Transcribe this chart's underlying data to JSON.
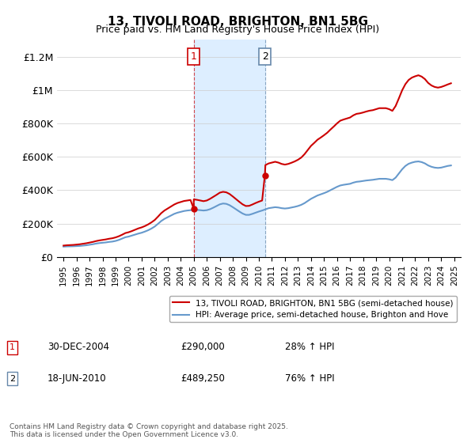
{
  "title": "13, TIVOLI ROAD, BRIGHTON, BN1 5BG",
  "subtitle": "Price paid vs. HM Land Registry's House Price Index (HPI)",
  "legend_line1": "13, TIVOLI ROAD, BRIGHTON, BN1 5BG (semi-detached house)",
  "legend_line2": "HPI: Average price, semi-detached house, Brighton and Hove",
  "price_color": "#cc0000",
  "hpi_color": "#6699cc",
  "shading_color": "#ddeeff",
  "annotation_box_color": "#cc0000",
  "ylim": [
    0,
    1300000
  ],
  "yticks": [
    0,
    200000,
    400000,
    600000,
    800000,
    1000000,
    1200000
  ],
  "ytick_labels": [
    "£0",
    "£200K",
    "£400K",
    "£600K",
    "£800K",
    "£1M",
    "£1.2M"
  ],
  "transaction1_date": "30-DEC-2004",
  "transaction1_price": "£290,000",
  "transaction1_hpi": "28% ↑ HPI",
  "transaction1_x": 2004.99,
  "transaction2_date": "18-JUN-2010",
  "transaction2_price": "£489,250",
  "transaction2_hpi": "76% ↑ HPI",
  "transaction2_x": 2010.46,
  "footer": "Contains HM Land Registry data © Crown copyright and database right 2025.\nThis data is licensed under the Open Government Licence v3.0.",
  "hpi_data": {
    "years": [
      1995.0,
      1995.25,
      1995.5,
      1995.75,
      1996.0,
      1996.25,
      1996.5,
      1996.75,
      1997.0,
      1997.25,
      1997.5,
      1997.75,
      1998.0,
      1998.25,
      1998.5,
      1998.75,
      1999.0,
      1999.25,
      1999.5,
      1999.75,
      2000.0,
      2000.25,
      2000.5,
      2000.75,
      2001.0,
      2001.25,
      2001.5,
      2001.75,
      2002.0,
      2002.25,
      2002.5,
      2002.75,
      2003.0,
      2003.25,
      2003.5,
      2003.75,
      2004.0,
      2004.25,
      2004.5,
      2004.75,
      2005.0,
      2005.25,
      2005.5,
      2005.75,
      2006.0,
      2006.25,
      2006.5,
      2006.75,
      2007.0,
      2007.25,
      2007.5,
      2007.75,
      2008.0,
      2008.25,
      2008.5,
      2008.75,
      2009.0,
      2009.25,
      2009.5,
      2009.75,
      2010.0,
      2010.25,
      2010.5,
      2010.75,
      2011.0,
      2011.25,
      2011.5,
      2011.75,
      2012.0,
      2012.25,
      2012.5,
      2012.75,
      2013.0,
      2013.25,
      2013.5,
      2013.75,
      2014.0,
      2014.25,
      2014.5,
      2014.75,
      2015.0,
      2015.25,
      2015.5,
      2015.75,
      2016.0,
      2016.25,
      2016.5,
      2016.75,
      2017.0,
      2017.25,
      2017.5,
      2017.75,
      2018.0,
      2018.25,
      2018.5,
      2018.75,
      2019.0,
      2019.25,
      2019.5,
      2019.75,
      2020.0,
      2020.25,
      2020.5,
      2020.75,
      2021.0,
      2021.25,
      2021.5,
      2021.75,
      2022.0,
      2022.25,
      2022.5,
      2022.75,
      2023.0,
      2023.25,
      2023.5,
      2023.75,
      2024.0,
      2024.25,
      2024.5,
      2024.75
    ],
    "values": [
      62000,
      63000,
      63500,
      64000,
      65000,
      66000,
      68000,
      70000,
      73000,
      76000,
      80000,
      83000,
      85000,
      87000,
      90000,
      92000,
      96000,
      102000,
      110000,
      118000,
      122000,
      128000,
      134000,
      140000,
      145000,
      152000,
      160000,
      170000,
      182000,
      198000,
      215000,
      228000,
      238000,
      248000,
      258000,
      265000,
      270000,
      275000,
      278000,
      280000,
      282000,
      282000,
      280000,
      278000,
      280000,
      286000,
      295000,
      305000,
      315000,
      320000,
      318000,
      310000,
      298000,
      285000,
      272000,
      260000,
      252000,
      252000,
      258000,
      265000,
      272000,
      278000,
      285000,
      292000,
      295000,
      298000,
      296000,
      292000,
      290000,
      292000,
      296000,
      300000,
      305000,
      312000,
      322000,
      335000,
      348000,
      358000,
      368000,
      375000,
      382000,
      390000,
      400000,
      410000,
      420000,
      428000,
      432000,
      435000,
      438000,
      445000,
      450000,
      452000,
      455000,
      458000,
      460000,
      462000,
      465000,
      468000,
      468000,
      468000,
      465000,
      460000,
      475000,
      500000,
      525000,
      545000,
      558000,
      565000,
      570000,
      572000,
      568000,
      560000,
      548000,
      540000,
      535000,
      533000,
      535000,
      540000,
      545000,
      548000
    ]
  },
  "price_data": {
    "years": [
      1995.0,
      1995.25,
      1995.5,
      1995.75,
      1996.0,
      1996.25,
      1996.5,
      1996.75,
      1997.0,
      1997.25,
      1997.5,
      1997.75,
      1998.0,
      1998.25,
      1998.5,
      1998.75,
      1999.0,
      1999.25,
      1999.5,
      1999.75,
      2000.0,
      2000.25,
      2000.5,
      2000.75,
      2001.0,
      2001.25,
      2001.5,
      2001.75,
      2002.0,
      2002.25,
      2002.5,
      2002.75,
      2003.0,
      2003.25,
      2003.5,
      2003.75,
      2004.0,
      2004.25,
      2004.5,
      2004.75,
      2004.99,
      2005.0,
      2005.25,
      2005.5,
      2005.75,
      2006.0,
      2006.25,
      2006.5,
      2006.75,
      2007.0,
      2007.25,
      2007.5,
      2007.75,
      2008.0,
      2008.25,
      2008.5,
      2008.75,
      2009.0,
      2009.25,
      2009.5,
      2009.75,
      2010.0,
      2010.25,
      2010.46,
      2010.5,
      2010.75,
      2011.0,
      2011.25,
      2011.5,
      2011.75,
      2012.0,
      2012.25,
      2012.5,
      2012.75,
      2013.0,
      2013.25,
      2013.5,
      2013.75,
      2014.0,
      2014.25,
      2014.5,
      2014.75,
      2015.0,
      2015.25,
      2015.5,
      2015.75,
      2016.0,
      2016.25,
      2016.5,
      2016.75,
      2017.0,
      2017.25,
      2017.5,
      2017.75,
      2018.0,
      2018.25,
      2018.5,
      2018.75,
      2019.0,
      2019.25,
      2019.5,
      2019.75,
      2020.0,
      2020.25,
      2020.5,
      2020.75,
      2021.0,
      2021.25,
      2021.5,
      2021.75,
      2022.0,
      2022.25,
      2022.5,
      2022.75,
      2023.0,
      2023.25,
      2023.5,
      2023.75,
      2024.0,
      2024.25,
      2024.5,
      2024.75
    ],
    "values": [
      68000,
      70000,
      71000,
      72000,
      74000,
      76000,
      79000,
      82000,
      86000,
      90000,
      95000,
      99000,
      102000,
      105000,
      109000,
      112000,
      117000,
      124000,
      133000,
      143000,
      148000,
      155000,
      163000,
      171000,
      177000,
      185000,
      195000,
      207000,
      221000,
      241000,
      262000,
      278000,
      290000,
      302000,
      314000,
      323000,
      329000,
      335000,
      338000,
      341000,
      290000,
      345000,
      342000,
      338000,
      334000,
      338000,
      348000,
      360000,
      372000,
      385000,
      390000,
      387000,
      377000,
      362000,
      346000,
      330000,
      315000,
      305000,
      306000,
      314000,
      323000,
      331000,
      338000,
      489250,
      550000,
      560000,
      565000,
      570000,
      565000,
      557000,
      553000,
      557000,
      564000,
      572000,
      582000,
      595000,
      615000,
      640000,
      665000,
      683000,
      702000,
      715000,
      729000,
      744000,
      763000,
      781000,
      800000,
      816000,
      823000,
      829000,
      835000,
      848000,
      857000,
      860000,
      865000,
      871000,
      876000,
      879000,
      885000,
      891000,
      891000,
      891000,
      885000,
      875000,
      904000,
      950000,
      998000,
      1035000,
      1060000,
      1074000,
      1082000,
      1088000,
      1080000,
      1065000,
      1042000,
      1027000,
      1018000,
      1014000,
      1018000,
      1025000,
      1033000,
      1040000
    ]
  }
}
